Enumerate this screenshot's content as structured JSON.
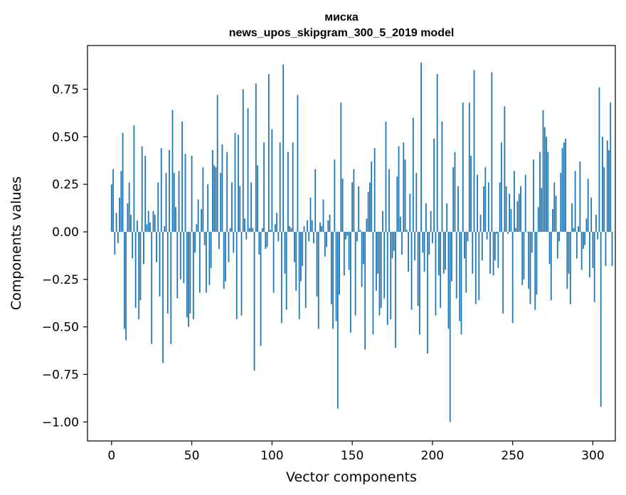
{
  "chart_data": {
    "type": "bar",
    "title": "миска",
    "subtitle": "news_upos_skipgram_300_5_2019 model",
    "xlabel": "Vector components",
    "ylabel": "Components values",
    "xlim": [
      -15,
      314
    ],
    "ylim": [
      -1.1,
      0.98
    ],
    "xticks": [
      0,
      50,
      100,
      150,
      200,
      250,
      300
    ],
    "xtick_labels": [
      "0",
      "50",
      "100",
      "150",
      "200",
      "250",
      "300"
    ],
    "yticks": [
      0.75,
      0.5,
      0.25,
      0.0,
      -0.25,
      -0.5,
      -0.75,
      -1.0
    ],
    "ytick_labels": [
      "0.75",
      "0.50",
      "0.25",
      "0.00",
      "−0.25",
      "−0.50",
      "−0.75",
      "−1.00"
    ],
    "bar_color": "#1f77b4",
    "values": [
      0.25,
      0.33,
      -0.12,
      0.1,
      -0.06,
      0.18,
      0.32,
      0.52,
      -0.51,
      -0.57,
      0.15,
      0.26,
      0.09,
      -0.14,
      0.56,
      -0.4,
      0.06,
      -0.46,
      -0.36,
      0.45,
      -0.17,
      0.4,
      0.04,
      0.11,
      0.05,
      -0.59,
      0.11,
      0.09,
      -0.16,
      0.26,
      -0.34,
      0.44,
      -0.69,
      0.03,
      0.31,
      -0.43,
      0.43,
      -0.59,
      0.64,
      0.31,
      0.13,
      -0.35,
      0.32,
      -0.25,
      0.58,
      -0.27,
      0.41,
      -0.45,
      -0.5,
      -0.43,
      0.4,
      -0.46,
      -0.11,
      0.04,
      0.17,
      -0.32,
      0.12,
      0.34,
      -0.07,
      -0.32,
      0.25,
      -0.28,
      -0.19,
      0.43,
      0.35,
      0.34,
      0.72,
      -0.09,
      0.31,
      0.46,
      -0.3,
      -0.26,
      0.42,
      -0.16,
      0.02,
      0.26,
      -0.11,
      0.52,
      -0.46,
      0.51,
      0.24,
      -0.44,
      0.75,
      0.07,
      -0.04,
      0.65,
      0.02,
      0.26,
      0.02,
      -0.73,
      0.78,
      0.35,
      -0.12,
      -0.6,
      0.02,
      0.47,
      -0.09,
      -0.08,
      0.83,
      0.01,
      0.54,
      -0.32,
      0.04,
      0.1,
      -0.05,
      0.47,
      -0.48,
      0.88,
      -0.22,
      -0.41,
      0.42,
      0.03,
      0.02,
      0.47,
      -0.16,
      -0.31,
      0.72,
      -0.46,
      -0.26,
      -0.18,
      0.03,
      -0.4,
      0.06,
      -0.05,
      0.18,
      0.06,
      -0.06,
      0.33,
      -0.34,
      -0.51,
      0.05,
      0.03,
      0.17,
      -0.13,
      -0.08,
      0.06,
      0.09,
      -0.38,
      -0.51,
      0.38,
      -0.47,
      -0.93,
      -0.33,
      0.68,
      0.28,
      -0.23,
      -0.04,
      -0.02,
      -0.2,
      -0.53,
      0.26,
      0.33,
      -0.44,
      -0.05,
      0.24,
      0.01,
      -0.29,
      -0.17,
      -0.62,
      0.07,
      0.21,
      0.26,
      0.37,
      -0.54,
      0.44,
      -0.31,
      -0.22,
      -0.44,
      -0.4,
      0.11,
      -0.35,
      0.58,
      -0.49,
      0.33,
      -0.46,
      -0.14,
      -0.1,
      -0.61,
      0.29,
      0.45,
      0.08,
      -0.12,
      0.47,
      0.38,
      0.01,
      -0.21,
      0.2,
      -0.41,
      0.6,
      -0.15,
      0.31,
      -0.39,
      -0.54,
      0.89,
      -0.11,
      -0.21,
      0.15,
      -0.64,
      -0.12,
      0.11,
      -0.06,
      0.49,
      -0.44,
      0.83,
      -0.23,
      -0.4,
      0.58,
      -0.22,
      -0.2,
      0.15,
      -0.51,
      -1.0,
      -0.26,
      0.34,
      0.42,
      -0.35,
      0.24,
      -0.47,
      -0.54,
      0.68,
      -0.14,
      -0.32,
      -0.05,
      0.68,
      0.4,
      -0.22,
      0.85,
      -0.38,
      0.3,
      -0.36,
      0.09,
      -0.15,
      0.24,
      0.34,
      -0.04,
      0.26,
      -0.22,
      0.84,
      -0.23,
      -0.15,
      -0.01,
      -0.19,
      0.26,
      0.47,
      -0.43,
      0.66,
      0.24,
      -0.01,
      0.2,
      0.12,
      -0.48,
      0.32,
      0.02,
      0.16,
      0.2,
      0.24,
      -0.28,
      -0.25,
      0.3,
      0.0,
      -0.3,
      -0.38,
      -0.11,
      0.38,
      -0.41,
      -0.33,
      0.13,
      0.42,
      0.23,
      0.64,
      0.55,
      0.5,
      0.42,
      -0.17,
      -0.36,
      0.12,
      0.26,
      0.19,
      -0.14,
      -0.05,
      0.31,
      0.44,
      0.47,
      0.49,
      -0.3,
      -0.22,
      -0.38,
      0.15,
      0.02,
      0.32,
      -0.14,
      0.03,
      0.37,
      -0.2,
      -0.09,
      -0.07,
      0.07,
      0.28,
      -0.24,
      0.18,
      -0.19,
      -0.37,
      0.09,
      -0.04,
      0.76,
      -0.92,
      0.5,
      0.34,
      -0.18,
      0.48,
      0.43,
      0.68,
      -0.18
    ]
  }
}
